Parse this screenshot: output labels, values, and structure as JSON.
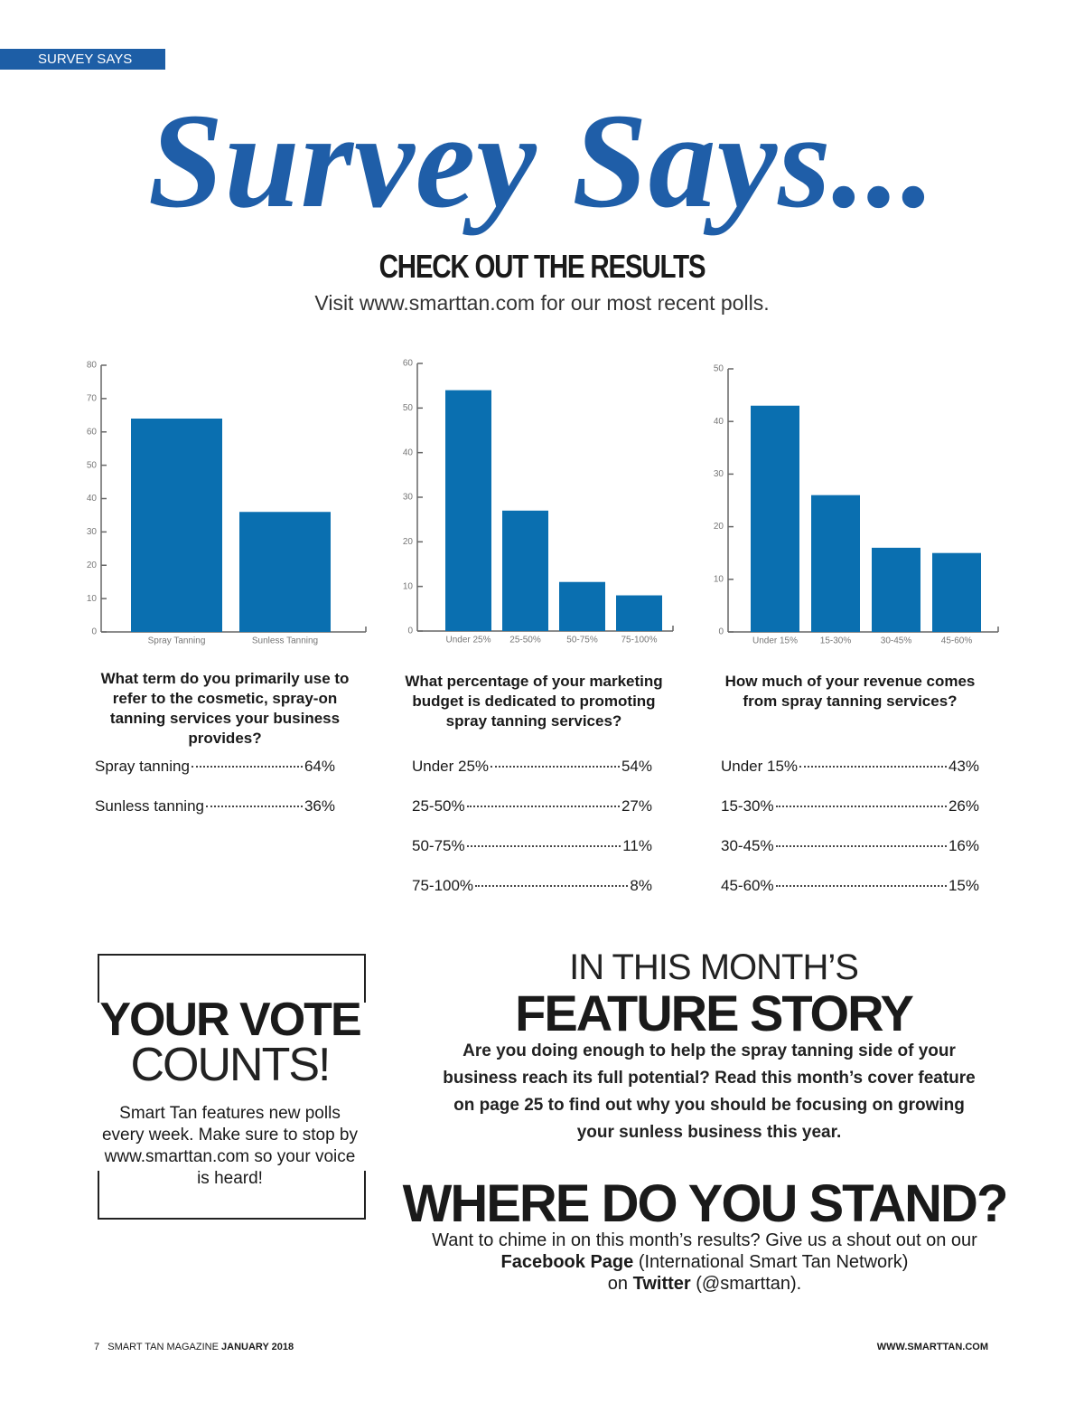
{
  "header": {
    "tag": "SURVEY SAYS",
    "title": "Survey Says...",
    "heading": "CHECK OUT THE RESULTS",
    "subtitle": "Visit www.smarttan.com for our most recent polls."
  },
  "chart_data": [
    {
      "type": "bar",
      "title": "What term do you primarily use to refer to the cosmetic, spray-on tanning services your business provides?",
      "categories": [
        "Spray Tanning",
        "Sunless Tanning"
      ],
      "values": [
        64,
        36
      ],
      "color": "#0a6fb0",
      "ylim": [
        0,
        80
      ],
      "yticks": [
        0,
        10,
        20,
        30,
        40,
        50,
        60,
        70,
        80
      ],
      "list": [
        {
          "label": "Spray tanning",
          "value": "64%"
        },
        {
          "label": "Sunless tanning",
          "value": "36%"
        }
      ]
    },
    {
      "type": "bar",
      "title": "What percentage of your marketing budget is dedicated to promoting spray tanning services?",
      "categories": [
        "Under 25%",
        "25-50%",
        "50-75%",
        "75-100%"
      ],
      "values": [
        54,
        27,
        11,
        8
      ],
      "color": "#0a6fb0",
      "ylim": [
        0,
        60
      ],
      "yticks": [
        0,
        10,
        20,
        30,
        40,
        50,
        60
      ],
      "list": [
        {
          "label": "Under 25%",
          "value": "54%"
        },
        {
          "label": "25-50%",
          "value": "27%"
        },
        {
          "label": "50-75%",
          "value": "11%"
        },
        {
          "label": "75-100%",
          "value": "8%"
        }
      ]
    },
    {
      "type": "bar",
      "title": "How much of your revenue comes from spray tanning services?",
      "categories": [
        "Under 15%",
        "15-30%",
        "30-45%",
        "45-60%"
      ],
      "values": [
        43,
        26,
        16,
        15
      ],
      "color": "#0a6fb0",
      "ylim": [
        0,
        50
      ],
      "yticks": [
        0,
        10,
        20,
        30,
        40,
        50
      ],
      "list": [
        {
          "label": "Under 15%",
          "value": "43%"
        },
        {
          "label": "15-30%",
          "value": "26%"
        },
        {
          "label": "30-45%",
          "value": "16%"
        },
        {
          "label": "45-60%",
          "value": "15%"
        }
      ]
    }
  ],
  "vote": {
    "line1": "YOUR VOTE",
    "line2": "COUNTS!",
    "body": "Smart Tan features new polls every week. Make sure to stop by www.smarttan.com so your voice is heard!"
  },
  "feature": {
    "kicker": "IN THIS MONTH’S",
    "title": "FEATURE STORY",
    "body": "Are you doing enough to help the spray tanning side of your business reach its full potential? Read this month’s cover feature on page 25 to find out why you should be focusing on growing your sunless business this year."
  },
  "stand": {
    "title": "WHERE DO YOU STAND?",
    "intro": "Want to chime in on this month’s results? Give us a shout out on our",
    "facebook": "Facebook Page",
    "facebook_note": "(International Smart Tan Network)",
    "on": "on",
    "twitter": "Twitter",
    "twitter_note": "(@smarttan)."
  },
  "footer": {
    "page": "7",
    "magazine": "SMART TAN MAGAZINE",
    "issue": "JANUARY 2018",
    "site": "WWW.SMARTTAN.COM"
  }
}
